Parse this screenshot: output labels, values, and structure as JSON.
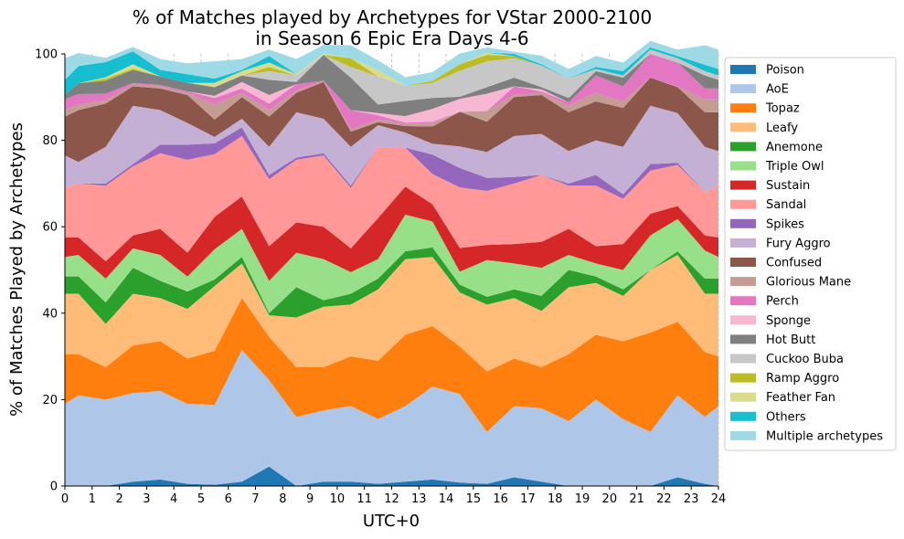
{
  "chart_data": {
    "type": "area",
    "stacked": true,
    "title_lines": [
      "% of Matches played by Archetypes for VStar 2000-2100",
      "in Season 6 Epic Era Days 4-6"
    ],
    "xlabel": "UTC+0",
    "ylabel": "% of Matches Played by Archetypes",
    "xlim": [
      0,
      24
    ],
    "ylim": [
      0,
      100
    ],
    "x_ticks": [
      "0",
      "1",
      "2",
      "3",
      "4",
      "5",
      "6",
      "7",
      "8",
      "9",
      "10",
      "11",
      "12",
      "13",
      "14",
      "15",
      "16",
      "17",
      "18",
      "19",
      "20",
      "21",
      "22",
      "23",
      "24"
    ],
    "y_ticks": [
      "0",
      "20",
      "40",
      "60",
      "80",
      "100"
    ],
    "grid": "vertical dashed",
    "legend_position": "right",
    "x": [
      0,
      0.5,
      1.5,
      2.5,
      3.5,
      4.5,
      5.5,
      6.5,
      7.5,
      8.5,
      9.5,
      10.5,
      11.5,
      12.5,
      13.5,
      14.5,
      15.5,
      16.5,
      17.5,
      18.5,
      19.5,
      20.5,
      21.5,
      22.5,
      23.5,
      24
    ],
    "series": [
      {
        "name": "Poison",
        "color": "#1f77b4",
        "values": [
          0,
          0,
          0,
          1,
          1.5,
          0.5,
          0.3,
          1,
          4.5,
          0,
          1,
          1,
          0.5,
          1,
          1.5,
          0.8,
          0.5,
          2,
          1,
          0,
          0,
          0,
          0,
          2,
          0.5,
          0
        ]
      },
      {
        "name": "AoE",
        "color": "#aec7e8",
        "values": [
          19,
          21,
          20,
          20.5,
          20.5,
          18.5,
          18.5,
          30.5,
          20,
          16,
          16.5,
          17.5,
          15,
          17.5,
          21.5,
          20.5,
          12,
          16.5,
          17,
          15,
          20,
          15.5,
          12.5,
          19,
          15.5,
          18.5
        ]
      },
      {
        "name": "Topaz",
        "color": "#ff7f0e",
        "values": [
          11.5,
          9.5,
          7.5,
          11,
          11.5,
          10.5,
          12.5,
          12,
          10,
          11.5,
          10,
          11.5,
          13.5,
          16.5,
          14,
          11,
          14,
          11,
          9.5,
          15.5,
          15,
          18,
          23,
          17,
          15,
          11.5
        ]
      },
      {
        "name": "Leafy",
        "color": "#ffbb78",
        "values": [
          14,
          14,
          10,
          12,
          10,
          11.5,
          15,
          8,
          5,
          11.5,
          14,
          12,
          16.5,
          17.5,
          16,
          12.5,
          15.5,
          14,
          13,
          15.5,
          12,
          10.5,
          14.5,
          15.5,
          13.5,
          14.5
        ]
      },
      {
        "name": "Anemone",
        "color": "#2ca02c",
        "values": [
          4,
          4,
          5,
          6,
          4,
          4,
          1.5,
          1.5,
          0.5,
          7,
          1.5,
          2.5,
          2.5,
          1.8,
          2.2,
          1.8,
          1.8,
          2,
          3.5,
          4,
          1.5,
          1.5,
          0,
          0.8,
          3.5,
          3.5
        ]
      },
      {
        "name": "Triple Owl",
        "color": "#98df8a",
        "values": [
          4.5,
          5,
          5.5,
          4.5,
          6,
          3.5,
          7,
          6.5,
          7.5,
          8,
          9.5,
          5,
          4.5,
          8.5,
          6,
          3,
          8.5,
          6,
          6.5,
          3.5,
          3,
          4.5,
          8,
          7.5,
          6.5,
          5
        ]
      },
      {
        "name": "Sustain",
        "color": "#d62728",
        "values": [
          4.5,
          4,
          4,
          3,
          6,
          5.5,
          7.5,
          7.5,
          8,
          7,
          7.5,
          5.5,
          9.5,
          6.5,
          4,
          5.5,
          3.5,
          4.5,
          6,
          6,
          4,
          6,
          5,
          3,
          3.5,
          4.5
        ]
      },
      {
        "name": "Sandal",
        "color": "#ff9896",
        "values": [
          11.5,
          12.5,
          17.5,
          16,
          17.5,
          21.5,
          14.5,
          14,
          15.5,
          14.5,
          16.5,
          14,
          16.5,
          9,
          7,
          14,
          12.5,
          14,
          15.5,
          10,
          14,
          10.5,
          10,
          9.5,
          10,
          12
        ]
      },
      {
        "name": "Spikes",
        "color": "#9467bd",
        "values": [
          0,
          0,
          0.5,
          0.5,
          2,
          3.5,
          2.5,
          2,
          1,
          0.5,
          0.5,
          0.5,
          0,
          0,
          4.5,
          4.5,
          3,
          1.5,
          0,
          0.5,
          2.5,
          1,
          1.5,
          0.5,
          0,
          0
        ]
      },
      {
        "name": "Fury Aggro",
        "color": "#c5b0d5",
        "values": [
          7.5,
          5,
          8.5,
          13.5,
          8,
          5,
          1.5,
          2,
          6.5,
          10.5,
          8,
          9,
          5,
          3.5,
          2.5,
          5,
          6,
          9.5,
          9.5,
          7.5,
          8,
          11,
          13.5,
          11.5,
          10.5,
          8
        ]
      },
      {
        "name": "Confused",
        "color": "#8c564b",
        "values": [
          9,
          12,
          10,
          4.5,
          5,
          6.5,
          4,
          5,
          7,
          4.5,
          8.5,
          3.5,
          0.7,
          1.5,
          4,
          8,
          7,
          9,
          9,
          9,
          9,
          9,
          6.5,
          6,
          8,
          9
        ]
      },
      {
        "name": "Glorious Mane",
        "color": "#c49c94",
        "values": [
          1.5,
          1.2,
          0.8,
          0.5,
          0.5,
          0.5,
          3.5,
          1,
          1.5,
          0.5,
          0.3,
          0.5,
          0.6,
          0.5,
          0.8,
          0,
          2.5,
          0.5,
          0.5,
          1.5,
          2,
          1.5,
          0,
          0.2,
          3,
          3
        ]
      },
      {
        "name": "Perch",
        "color": "#e377c2",
        "values": [
          2.5,
          2.5,
          1.5,
          0.3,
          0.3,
          0.3,
          1.5,
          1,
          1.5,
          1.5,
          0,
          4.5,
          1,
          0.3,
          0.3,
          0,
          0,
          2,
          0.3,
          0.8,
          4,
          3.5,
          5.5,
          5.5,
          2.5,
          2.5
        ]
      },
      {
        "name": "Sponge",
        "color": "#f7b6d2",
        "values": [
          0,
          0,
          0,
          0,
          0,
          0,
          0.5,
          1.5,
          2,
          0,
          0,
          0,
          0.5,
          1.5,
          3,
          3,
          4,
          0,
          0.5,
          0,
          0,
          0,
          0,
          0,
          0,
          0
        ]
      },
      {
        "name": "Hot Butt",
        "color": "#7f7f7f",
        "values": [
          1,
          2.5,
          3,
          3,
          2,
          2,
          2,
          1.5,
          3.5,
          0.5,
          6,
          7.5,
          2,
          3.5,
          2.5,
          0.5,
          1.5,
          2,
          0.5,
          1,
          1,
          2,
          0,
          0,
          3,
          2
        ]
      },
      {
        "name": "Cuckoo Buba",
        "color": "#c7c7c7",
        "values": [
          0,
          0,
          0,
          0,
          0,
          0,
          0,
          0,
          2,
          1.5,
          0,
          2.5,
          6.5,
          3.5,
          3.5,
          6,
          6,
          4.5,
          5,
          4.5,
          0.5,
          0.5,
          1,
          1,
          1,
          1
        ]
      },
      {
        "name": "Ramp Aggro",
        "color": "#bcbd22",
        "values": [
          0,
          0,
          0.5,
          0.3,
          0,
          0,
          0,
          0,
          1,
          0,
          0,
          2,
          0,
          0,
          0.5,
          1.5,
          1.5,
          0.5,
          0,
          0,
          0,
          0,
          0,
          0,
          0,
          0
        ]
      },
      {
        "name": "Feather Fan",
        "color": "#dbdb8d",
        "values": [
          0,
          0,
          0.3,
          1,
          0,
          0,
          1,
          1,
          1,
          0.3,
          0.3,
          0,
          1.5,
          0,
          0,
          0,
          0.5,
          0,
          0,
          0,
          0,
          0,
          0,
          0,
          0,
          0
        ]
      },
      {
        "name": "Others",
        "color": "#17becf",
        "values": [
          3.5,
          4,
          3.5,
          3,
          1.5,
          2,
          1,
          0.3,
          1.5,
          0,
          0,
          0,
          0,
          0,
          0,
          0,
          0,
          0.5,
          0.3,
          0,
          0.5,
          1,
          0.5,
          0.5,
          1.5,
          1.5
        ]
      },
      {
        "name": "Multiple archetypes",
        "color": "#9edae5",
        "values": [
          5,
          3,
          1,
          1,
          2.5,
          2.5,
          4,
          2.5,
          1.5,
          3.5,
          2,
          3,
          2.2,
          2,
          2,
          2.5,
          1.2,
          0.5,
          2,
          2.2,
          2.5,
          2,
          1.5,
          1.5,
          4.5,
          4.5
        ]
      }
    ]
  }
}
